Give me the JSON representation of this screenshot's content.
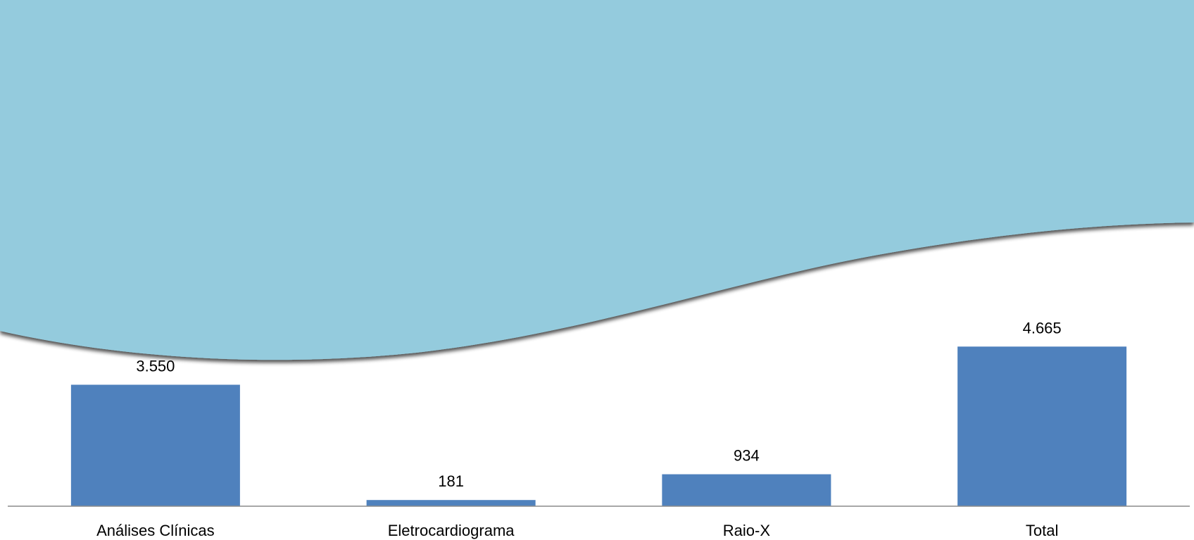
{
  "colors": {
    "background_wave": "#94cbdd",
    "wave_shadow": "#4a4a4a",
    "bar": "#4f81bd",
    "axis": "#8c8c8c",
    "text": "#000000"
  },
  "chart_data": {
    "type": "bar",
    "title": "",
    "xlabel": "",
    "ylabel": "",
    "categories": [
      "Análises Clínicas",
      "Eletrocardiograma",
      "Raio-X",
      "Total"
    ],
    "values": [
      3550,
      181,
      934,
      4665
    ],
    "value_labels": [
      "3.550",
      "181",
      "934",
      "4.665"
    ],
    "ylim": [
      0,
      4800
    ],
    "grid": false,
    "legend": "none",
    "y_axis_visible": false
  }
}
